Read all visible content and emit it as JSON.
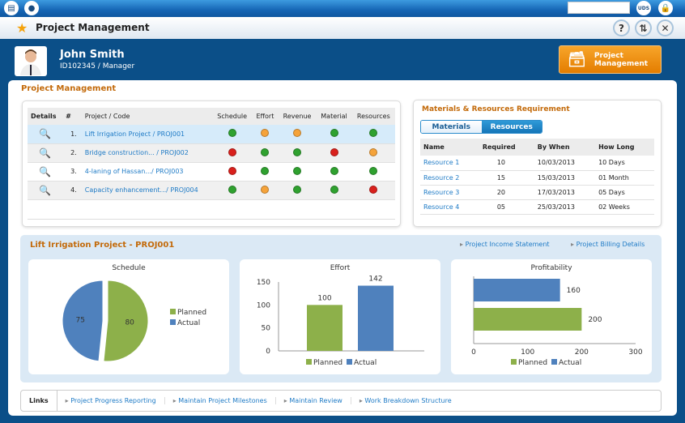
{
  "topbar": {
    "badge": "UDS"
  },
  "titlebar": {
    "title": "Project Management"
  },
  "user": {
    "name": "John Smith",
    "role": "ID102345 / Manager"
  },
  "module_button": {
    "line1": "Project",
    "line2": "Management"
  },
  "section_title": "Project Management",
  "projects": {
    "headers": [
      "Details",
      "#",
      "Project / Code",
      "Schedule",
      "Effort",
      "Revenue",
      "Material",
      "Resources"
    ],
    "rows": [
      {
        "num": "1.",
        "name": "Lift Irrigation Project / PROJ001",
        "status": [
          "green",
          "orange",
          "orange",
          "green",
          "green"
        ]
      },
      {
        "num": "2.",
        "name": "Bridge construction... / PROJ002",
        "status": [
          "red",
          "green",
          "green",
          "red",
          "orange"
        ]
      },
      {
        "num": "3.",
        "name": "4-laning of Hassan.../ PROJ003",
        "status": [
          "red",
          "green",
          "green",
          "green",
          "green"
        ]
      },
      {
        "num": "4.",
        "name": "Capacity enhancement.../ PROJ004",
        "status": [
          "green",
          "orange",
          "green",
          "green",
          "red"
        ]
      }
    ]
  },
  "colors": {
    "green": "#2fa12f",
    "orange": "#f5a33a",
    "red": "#d9201c",
    "planned": "#8db04a",
    "actual": "#4f81bd"
  },
  "requirements": {
    "title": "Materials & Resources Requirement",
    "tabs": [
      "Materials",
      "Resources"
    ],
    "headers": [
      "Name",
      "Required",
      "By When",
      "How Long"
    ],
    "rows": [
      [
        "Resource 1",
        "10",
        "10/03/2013",
        "10 Days"
      ],
      [
        "Resource 2",
        "15",
        "15/03/2013",
        "01 Month"
      ],
      [
        "Resource 3",
        "20",
        "17/03/2013",
        "05 Days"
      ],
      [
        "Resource 4",
        "05",
        "25/03/2013",
        "02 Weeks"
      ]
    ]
  },
  "detail": {
    "title": "Lift Irrigation Project - PROJ001",
    "links": [
      "Project Income Statement",
      "Project Billing Details"
    ]
  },
  "chart_data": [
    {
      "type": "pie",
      "title": "Schedule",
      "labels": [
        "Planned",
        "Actual"
      ],
      "values": [
        80,
        75
      ],
      "legend": "right"
    },
    {
      "type": "bar",
      "title": "Effort",
      "categories": [
        "Planned",
        "Actual"
      ],
      "values": [
        100,
        142
      ],
      "ylim": [
        0,
        150
      ],
      "yticks": [
        0,
        50,
        100,
        150
      ],
      "legend": "bottom"
    },
    {
      "type": "bar",
      "orientation": "horizontal",
      "title": "Profitability",
      "categories": [
        "Actual",
        "Planned"
      ],
      "values": [
        160,
        200
      ],
      "xlim": [
        0,
        300
      ],
      "xticks": [
        0,
        100,
        200,
        300
      ],
      "legend": "bottom"
    }
  ],
  "links": {
    "label": "Links",
    "items": [
      "Project Progress Reporting",
      "Maintain Project Milestones",
      "Maintain Review",
      "Work Breakdown Structure"
    ]
  }
}
